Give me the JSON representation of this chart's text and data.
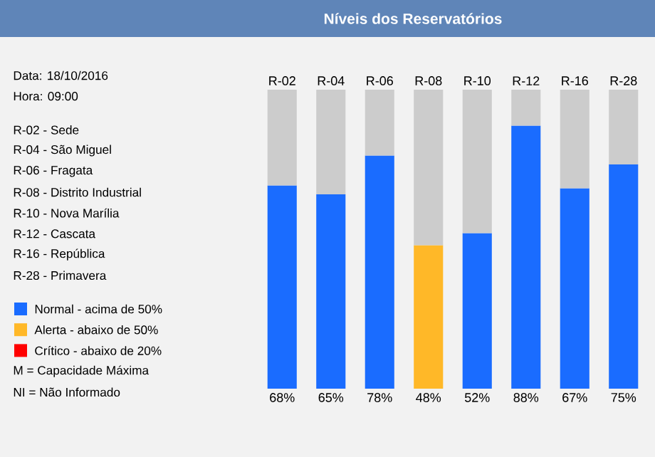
{
  "chart_data": {
    "type": "bar",
    "title": "Níveis dos Reservatórios",
    "categories": [
      "R-02",
      "R-04",
      "R-06",
      "R-08",
      "R-10",
      "R-12",
      "R-16",
      "R-28"
    ],
    "stacked": true,
    "ylim": [
      0,
      100
    ],
    "legend": "left",
    "series": [
      {
        "name": "Normal - acima de 50%",
        "color": "#1a6cff",
        "values": [
          68,
          65,
          78,
          null,
          52,
          88,
          67,
          75
        ],
        "value_labels": [
          "68%",
          "65%",
          "78%",
          null,
          "52%",
          "88%",
          "67%",
          "75%"
        ]
      },
      {
        "name": "Alerta - abaixo de 50%",
        "color": "#ffb828",
        "values": [
          null,
          null,
          null,
          48,
          null,
          null,
          null,
          null
        ],
        "value_labels": [
          null,
          null,
          null,
          "48%",
          null,
          null,
          null,
          null
        ]
      },
      {
        "name": "Crítico - abaixo de 20%",
        "color": "#ff0000",
        "values": [
          null,
          null,
          null,
          null,
          null,
          null,
          null,
          null
        ]
      },
      {
        "color": "#cccccc",
        "values": [
          32,
          35,
          22,
          52,
          48,
          12,
          33,
          25
        ]
      }
    ],
    "annotations": [
      "Data: 18/10/2016",
      "Hora: 09:00",
      "R-02 - Sede",
      "R-04 - São Miguel",
      "R-06 - Fragata",
      "R-08 - Distrito Industrial",
      "R-10 - Nova Marília",
      "R-12 - Cascata",
      "R-16 - República",
      "R-28 - Primavera",
      "M = Capacidade Máxima",
      "NI = Não Informado"
    ]
  }
}
